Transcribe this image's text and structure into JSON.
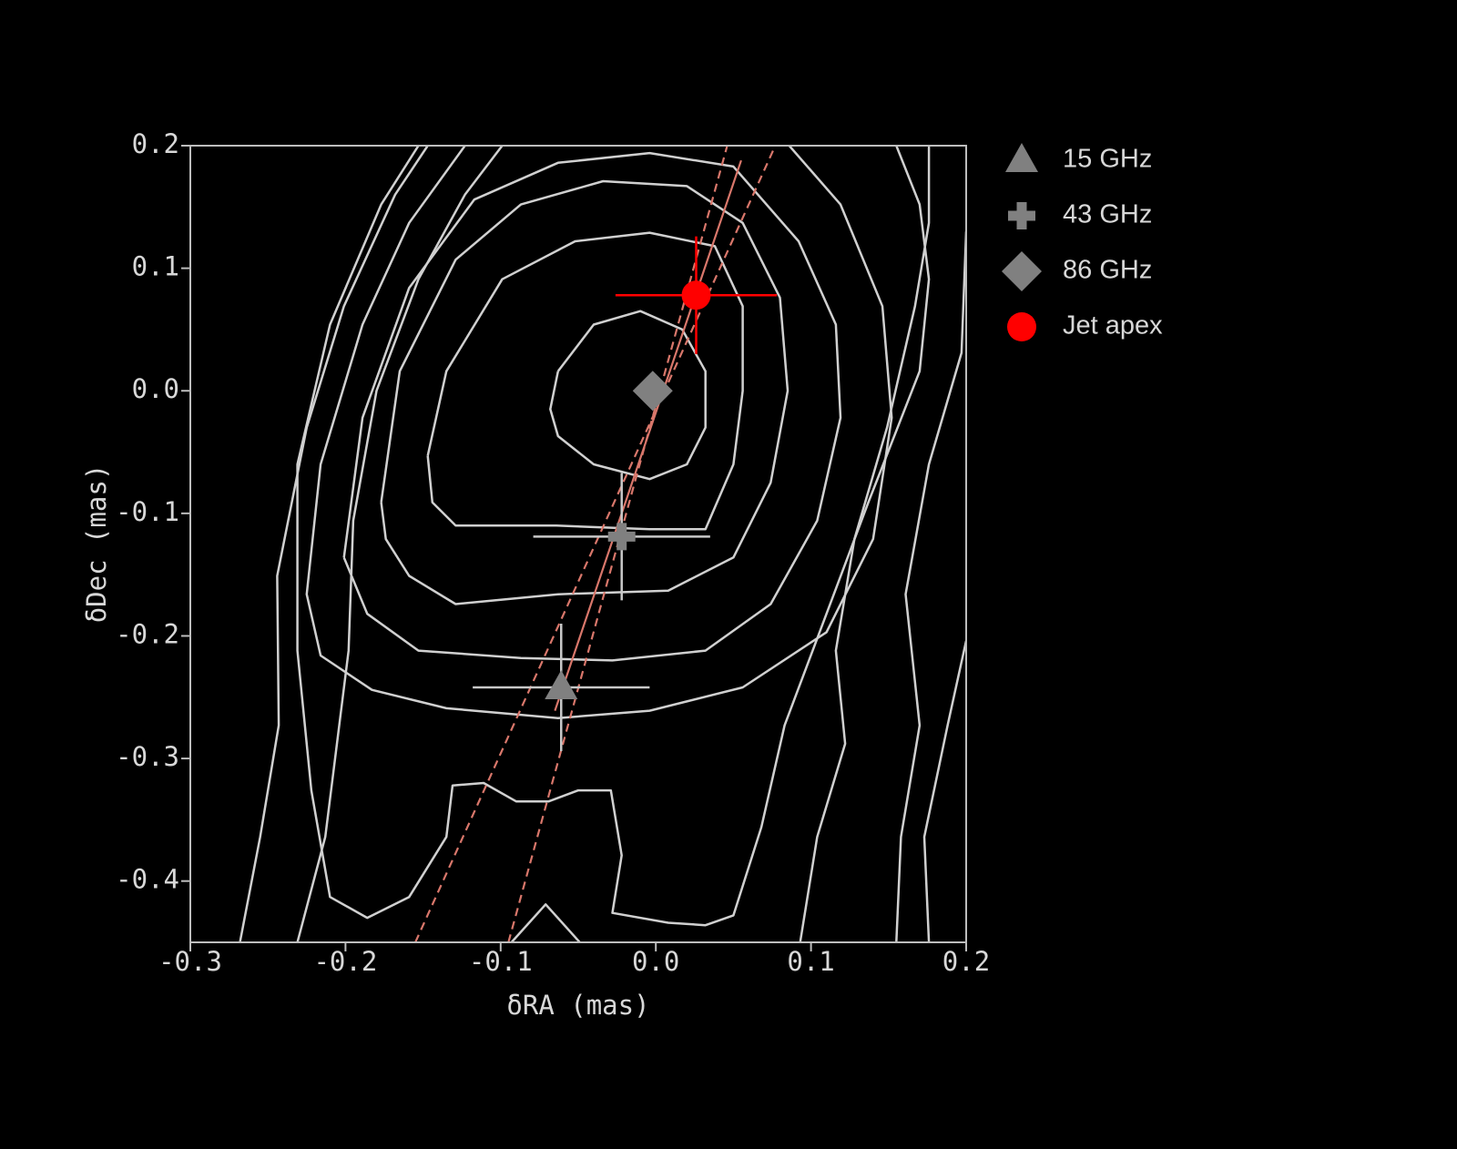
{
  "chart_data": {
    "type": "scatter",
    "xlabel": "δRA (mas)",
    "ylabel": "δDec (mas)",
    "xlim": [
      -0.3,
      0.2
    ],
    "ylim": [
      -0.45,
      0.2
    ],
    "xticks": [
      -0.3,
      -0.2,
      -0.1,
      {
        "value": 0,
        "label": "0.0"
      },
      0.1,
      0.2
    ],
    "yticks": [
      -0.4,
      -0.3,
      -0.2,
      -0.1,
      {
        "value": 0,
        "label": "0.0"
      },
      0.1,
      0.2
    ],
    "legend": "right",
    "contours": {
      "color": "#d0d0d0",
      "lines": [
        {
          "x": [
            -0.063,
            -0.04,
            -0.01,
            0.017,
            0.032,
            0.032,
            0.02,
            -0.004,
            -0.04,
            -0.063,
            -0.068,
            -0.063
          ],
          "y": [
            0.016,
            0.054,
            0.065,
            0.05,
            0.016,
            -0.03,
            -0.06,
            -0.072,
            -0.06,
            -0.037,
            -0.015,
            0.016
          ]
        },
        {
          "x": [
            -0.147,
            -0.135,
            -0.099,
            -0.052,
            -0.004,
            0.038,
            0.056,
            0.056,
            0.05,
            0.032,
            -0.004,
            -0.064,
            -0.129,
            -0.144,
            -0.147
          ],
          "y": [
            -0.053,
            0.016,
            0.091,
            0.122,
            0.129,
            0.118,
            0.069,
            0.0,
            -0.06,
            -0.113,
            -0.113,
            -0.11,
            -0.11,
            -0.091,
            -0.053
          ]
        },
        {
          "x": [
            -0.177,
            -0.165,
            -0.129,
            -0.087,
            -0.034,
            0.02,
            0.056,
            0.08,
            0.085,
            0.074,
            0.05,
            0.008,
            -0.063,
            -0.129,
            -0.159,
            -0.174,
            -0.177
          ],
          "y": [
            -0.091,
            0.016,
            0.107,
            0.152,
            0.171,
            0.167,
            0.137,
            0.076,
            0.0,
            -0.075,
            -0.136,
            -0.163,
            -0.166,
            -0.174,
            -0.151,
            -0.121,
            -0.091
          ]
        },
        {
          "x": [
            -0.201,
            -0.189,
            -0.159,
            -0.117,
            -0.063,
            -0.004,
            0.05,
            0.092,
            0.116,
            0.119,
            0.104,
            0.074,
            0.032,
            -0.028,
            -0.087,
            -0.153,
            -0.186,
            -0.201
          ],
          "y": [
            -0.136,
            -0.022,
            0.084,
            0.156,
            0.186,
            0.194,
            0.183,
            0.122,
            0.054,
            -0.022,
            -0.106,
            -0.174,
            -0.212,
            -0.22,
            -0.218,
            -0.212,
            -0.182,
            -0.136
          ]
        },
        {
          "x": [
            0.086,
            0.119,
            0.146,
            0.152,
            0.14,
            0.11,
            0.056,
            -0.004,
            -0.063,
            -0.135,
            -0.183,
            -0.216,
            -0.225,
            -0.216,
            -0.189,
            -0.159,
            -0.123
          ],
          "y": [
            0.2,
            0.152,
            0.069,
            -0.022,
            -0.121,
            -0.197,
            -0.242,
            -0.261,
            -0.267,
            -0.259,
            -0.244,
            -0.216,
            -0.166,
            -0.06,
            0.054,
            0.137,
            0.2
          ]
        },
        {
          "x": [
            -0.153,
            -0.177,
            -0.21,
            -0.231,
            -0.231,
            -0.222,
            -0.21,
            -0.186,
            -0.159,
            -0.135,
            -0.131,
            -0.111,
            -0.09,
            -0.069,
            -0.05,
            -0.029,
            -0.022,
            -0.028,
            0.008,
            0.032,
            0.05,
            0.068,
            0.083,
            0.11,
            0.137,
            0.17,
            0.176,
            0.17,
            0.155
          ],
          "y": [
            0.2,
            0.152,
            0.054,
            -0.06,
            -0.212,
            -0.326,
            -0.413,
            -0.43,
            -0.413,
            -0.364,
            -0.322,
            -0.32,
            -0.335,
            -0.335,
            -0.326,
            -0.326,
            -0.379,
            -0.426,
            -0.434,
            -0.436,
            -0.428,
            -0.356,
            -0.273,
            -0.182,
            -0.091,
            0.016,
            0.091,
            0.152,
            0.2
          ]
        },
        {
          "x": [
            -0.268,
            -0.255,
            -0.243,
            -0.244,
            -0.225,
            -0.201,
            -0.168,
            -0.147
          ],
          "y": [
            -0.45,
            -0.364,
            -0.273,
            -0.151,
            -0.03,
            0.069,
            0.16,
            0.2
          ]
        },
        {
          "x": [
            -0.231,
            -0.213,
            -0.198,
            -0.195,
            -0.18,
            -0.153,
            -0.123,
            -0.099
          ],
          "y": [
            -0.45,
            -0.364,
            -0.212,
            -0.106,
            0.0,
            0.091,
            0.16,
            0.2
          ]
        },
        {
          "x": [
            0.093,
            0.104,
            0.122,
            0.116,
            0.128,
            0.149,
            0.167,
            0.176,
            0.176
          ],
          "y": [
            -0.45,
            -0.364,
            -0.288,
            -0.212,
            -0.121,
            -0.03,
            0.069,
            0.137,
            0.2
          ]
        },
        {
          "x": [
            0.155,
            0.158,
            0.17,
            0.161,
            0.176,
            0.197,
            0.2
          ],
          "y": [
            -0.45,
            -0.364,
            -0.273,
            -0.166,
            -0.06,
            0.031,
            0.13
          ]
        },
        {
          "x": [
            0.176,
            0.173,
            0.188,
            0.2
          ],
          "y": [
            -0.45,
            -0.364,
            -0.273,
            -0.204
          ]
        },
        {
          "x": [
            -0.093,
            -0.071,
            -0.049
          ],
          "y": [
            -0.45,
            -0.419,
            -0.45
          ]
        }
      ]
    },
    "fit_lines": {
      "color": "#d9776b",
      "lines": [
        {
          "style": "solid",
          "x": [
            -0.065,
            0.055
          ],
          "y": [
            -0.261,
            0.188
          ]
        },
        {
          "style": "dashed",
          "x": [
            -0.155,
            0.077
          ],
          "y": [
            -0.45,
            0.2
          ]
        },
        {
          "style": "dashed",
          "x": [
            -0.095,
            0.046
          ],
          "y": [
            -0.45,
            0.2
          ]
        }
      ]
    },
    "series": [
      {
        "name": "15 GHz",
        "marker": "triangle",
        "color": "#808080",
        "error_color": "#c8c8c8",
        "x": [
          -0.061
        ],
        "values": [
          -0.242
        ],
        "xerr": [
          0.057
        ],
        "yerr": [
          0.052
        ]
      },
      {
        "name": "43 GHz",
        "marker": "plus",
        "color": "#808080",
        "error_color": "#c8c8c8",
        "x": [
          -0.022
        ],
        "values": [
          -0.119
        ],
        "xerr": [
          0.057
        ],
        "yerr": [
          0.052
        ]
      },
      {
        "name": "86 GHz",
        "marker": "diamond",
        "color": "#808080",
        "x": [
          -0.002
        ],
        "values": [
          0.0
        ]
      },
      {
        "name": "Jet apex",
        "marker": "circle",
        "color": "#ff0000",
        "error_color": "#ff0000",
        "x": [
          0.026
        ],
        "values": [
          0.078
        ],
        "xerr": [
          0.052
        ],
        "yerr": [
          0.048
        ]
      }
    ]
  }
}
